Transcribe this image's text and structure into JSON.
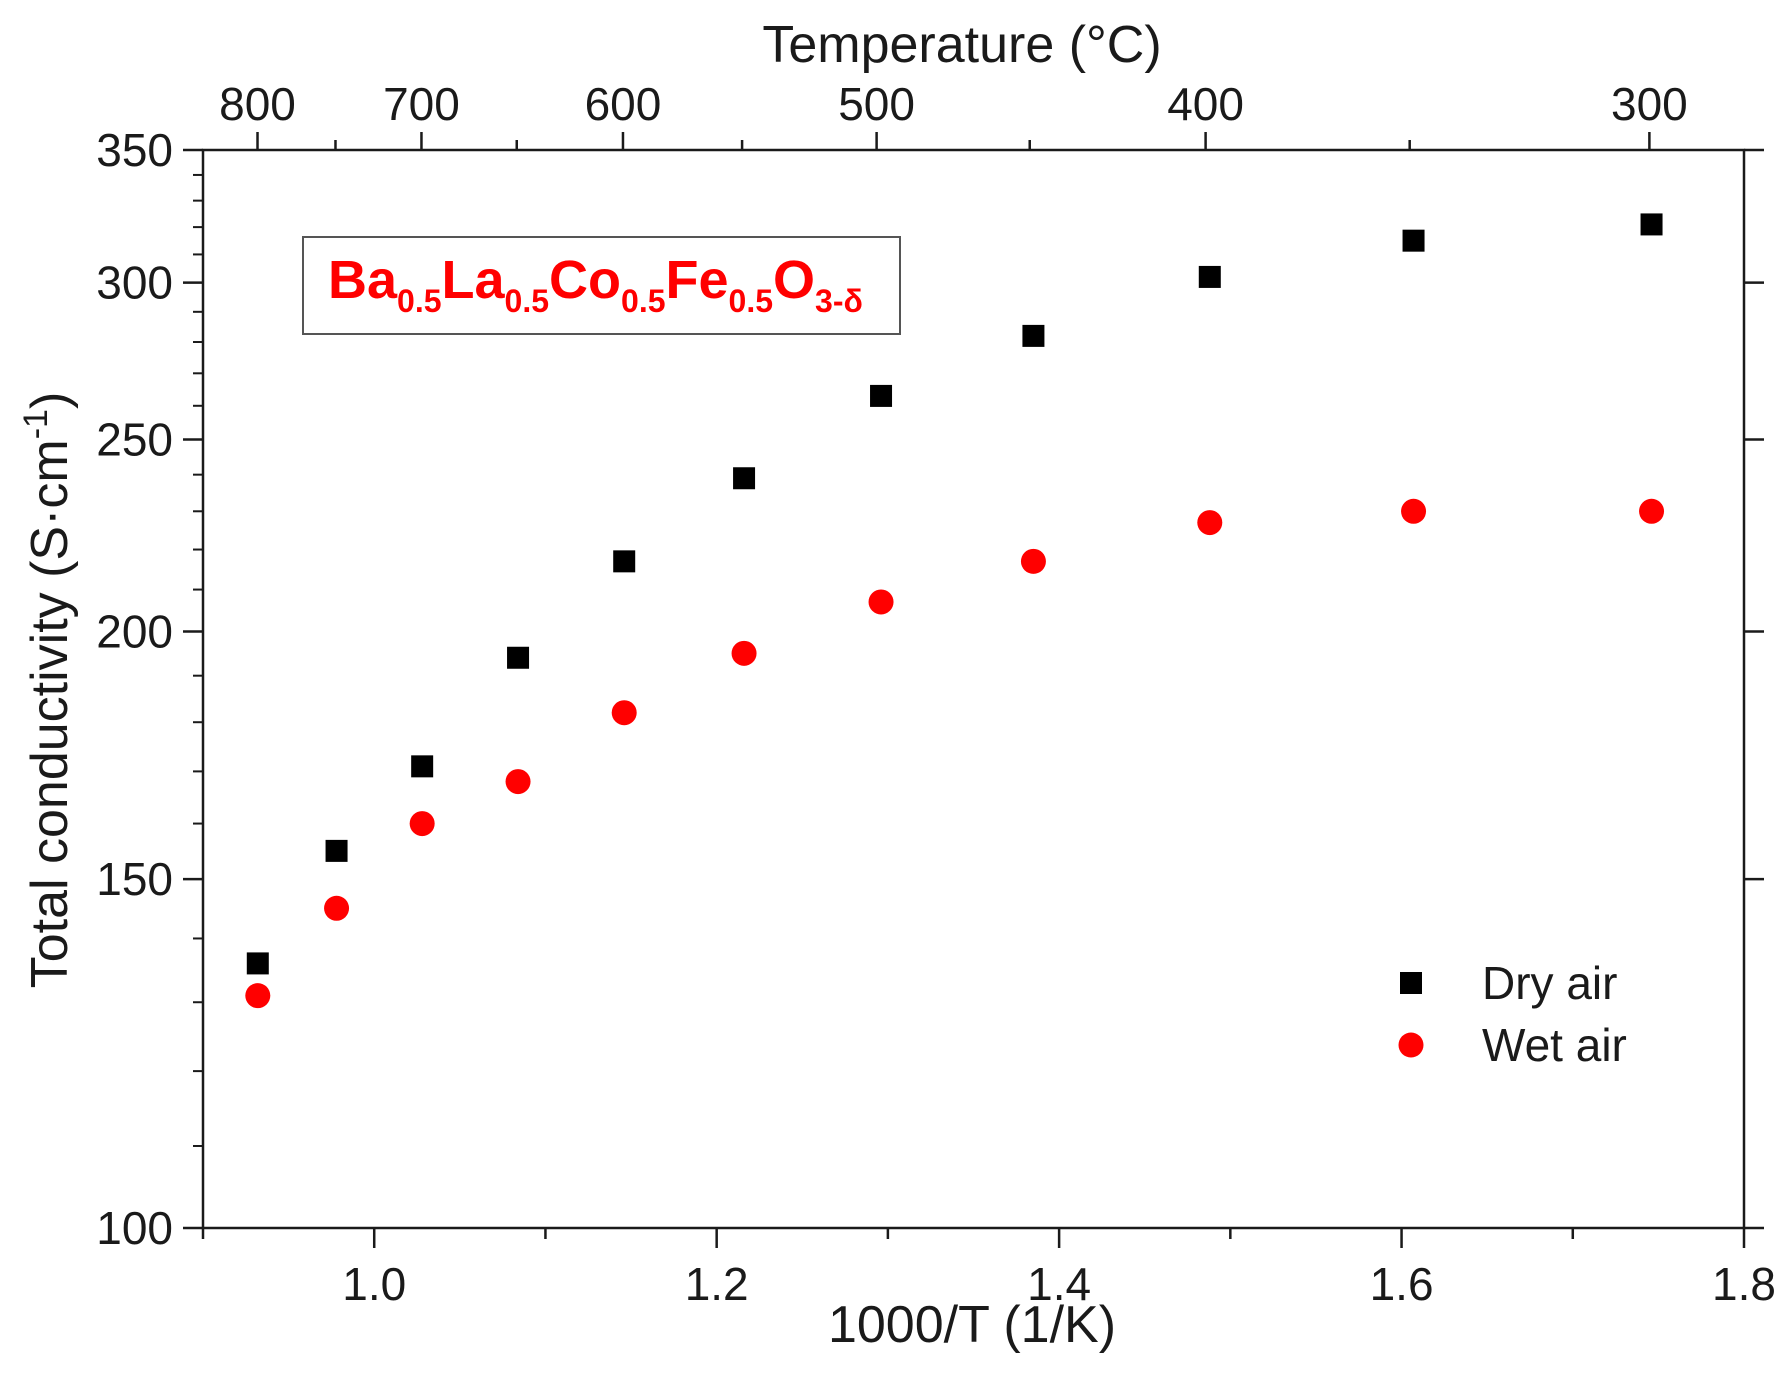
{
  "chart_data": {
    "type": "scatter",
    "ylabel_main": "Total conductivity (S·cm",
    "ylabel_exp": "-1",
    "ylabel_close": ")",
    "xlabel": "1000/T (1/K)",
    "top_xlabel": "Temperature (°C)",
    "xlim": [
      0.9,
      1.8
    ],
    "ylim": [
      100,
      350
    ],
    "yscale": "log",
    "x_ticks": [
      "1.0",
      "1.2",
      "1.4",
      "1.6",
      "1.8"
    ],
    "y_ticks": [
      "100",
      "150",
      "200",
      "250",
      "300",
      "350"
    ],
    "top_ticks": [
      "800",
      "700",
      "600",
      "500",
      "400",
      "300"
    ],
    "annotation": {
      "parts": [
        {
          "text": "Ba",
          "sub": false
        },
        {
          "text": "0.5",
          "sub": true
        },
        {
          "text": "La",
          "sub": false
        },
        {
          "text": "0.5",
          "sub": true
        },
        {
          "text": "Co",
          "sub": false
        },
        {
          "text": "0.5",
          "sub": true
        },
        {
          "text": "Fe",
          "sub": false
        },
        {
          "text": "0.5",
          "sub": true
        },
        {
          "text": "O",
          "sub": false
        },
        {
          "text": "3-δ",
          "sub": true
        }
      ]
    },
    "series": [
      {
        "name": "Dry air",
        "marker": "square",
        "color": "#000000",
        "x": [
          0.932,
          0.978,
          1.028,
          1.084,
          1.146,
          1.216,
          1.296,
          1.385,
          1.488,
          1.607,
          1.746
        ],
        "y": [
          136,
          155,
          171,
          194,
          217,
          239,
          263,
          282,
          302,
          315,
          321
        ]
      },
      {
        "name": "Wet air",
        "marker": "circle",
        "color": "#ff0000",
        "x": [
          0.932,
          0.978,
          1.028,
          1.084,
          1.146,
          1.216,
          1.296,
          1.385,
          1.488,
          1.607,
          1.746
        ],
        "y": [
          131,
          145,
          160,
          168,
          182,
          195,
          207,
          217,
          227,
          230,
          230
        ]
      }
    ],
    "legend_position": "bottom-right"
  }
}
